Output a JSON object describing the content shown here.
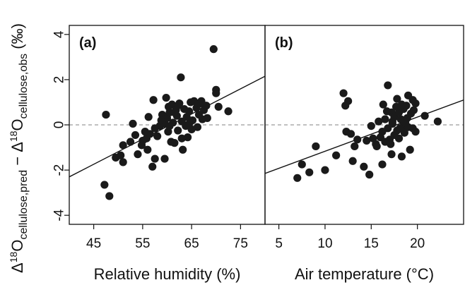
{
  "chart_data": {
    "ylabel": {
      "delta": "Δ",
      "sup": "18",
      "o": "O",
      "sub_pred": "cellulose,pred",
      "minus": " − ",
      "sub_obs": "cellulose,obs",
      "unit": " (‰)"
    },
    "ylim": [
      -4.4,
      4.4
    ],
    "yticks": [
      -4,
      -2,
      0,
      2,
      4
    ],
    "point_color": "#1a1a1a",
    "reference_line": {
      "y": 0,
      "style": "dashed",
      "color": "#9a9a9a"
    },
    "panels": [
      {
        "type": "scatter",
        "label": "(a)",
        "xlabel": "Relative humidity (%)",
        "xlim": [
          40,
          80
        ],
        "xticks": [
          45,
          55,
          65,
          75
        ],
        "regression": {
          "x": [
            40,
            80
          ],
          "y": [
            -2.3,
            2.15
          ]
        },
        "points": [
          [
            47.5,
            0.45
          ],
          [
            47.2,
            -2.65
          ],
          [
            48.2,
            -3.15
          ],
          [
            49.5,
            -1.45
          ],
          [
            50.5,
            -1.35
          ],
          [
            51,
            -0.9
          ],
          [
            51,
            -1.65
          ],
          [
            52.5,
            -0.75
          ],
          [
            53,
            0.05
          ],
          [
            53.5,
            -0.45
          ],
          [
            54,
            -1.3
          ],
          [
            55,
            -0.7
          ],
          [
            55.5,
            -0.3
          ],
          [
            55.8,
            -0.6
          ],
          [
            56,
            -1.1
          ],
          [
            56.5,
            -0.4
          ],
          [
            57,
            -1.85
          ],
          [
            57.2,
            1.1
          ],
          [
            57.5,
            -1.5
          ],
          [
            57.5,
            -0.15
          ],
          [
            58,
            -0.5
          ],
          [
            58.5,
            -0.05
          ],
          [
            59,
            0.45
          ],
          [
            59.5,
            0.05
          ],
          [
            59.5,
            -1.5
          ],
          [
            59.8,
            1.2
          ],
          [
            60,
            0.3
          ],
          [
            60.2,
            -0.3
          ],
          [
            60.5,
            0.55
          ],
          [
            60.8,
            -0.75
          ],
          [
            61,
            0.9
          ],
          [
            61.2,
            0.1
          ],
          [
            61.5,
            -0.8
          ],
          [
            61.8,
            0.65
          ],
          [
            62,
            0.4
          ],
          [
            62.2,
            -0.25
          ],
          [
            62.5,
            0.95
          ],
          [
            62.8,
            2.1
          ],
          [
            63,
            0.15
          ],
          [
            63.2,
            -1.1
          ],
          [
            63.5,
            0.7
          ],
          [
            63.8,
            -0.05
          ],
          [
            64,
            0.35
          ],
          [
            64.2,
            -0.55
          ],
          [
            64.5,
            0.6
          ],
          [
            64.8,
            1.0
          ],
          [
            65,
            -0.2
          ],
          [
            65.2,
            0.2
          ],
          [
            65.5,
            1.05
          ],
          [
            66,
            0.75
          ],
          [
            66.2,
            -0.1
          ],
          [
            66.5,
            0.45
          ],
          [
            67,
            1.05
          ],
          [
            67.2,
            0.25
          ],
          [
            67.5,
            0.65
          ],
          [
            68,
            0.85
          ],
          [
            68.2,
            0.3
          ],
          [
            69.5,
            3.35
          ],
          [
            70,
            1.55
          ],
          [
            70,
            1.4
          ],
          [
            70.5,
            0.8
          ],
          [
            72.5,
            0.6
          ],
          [
            61.5,
            0.55
          ],
          [
            63,
            -0.6
          ],
          [
            64.5,
            0.05
          ],
          [
            58.8,
            0.2
          ],
          [
            60.5,
            -0.05
          ],
          [
            56.2,
            0.35
          ],
          [
            62.2,
            0.85
          ],
          [
            60.3,
            0.8
          ],
          [
            54.8,
            -0.9
          ],
          [
            66.8,
            0.95
          ]
        ]
      },
      {
        "type": "scatter",
        "label": "(b)",
        "xlabel": "Air temperature (°C)",
        "xlim": [
          3.5,
          25
        ],
        "xticks": [
          5,
          10,
          15,
          20
        ],
        "regression": {
          "x": [
            3.5,
            25
          ],
          "y": [
            -2.15,
            1.1
          ]
        },
        "points": [
          [
            7,
            -2.35
          ],
          [
            7.5,
            -1.75
          ],
          [
            8.3,
            -2.1
          ],
          [
            9,
            -0.95
          ],
          [
            10,
            -2.0
          ],
          [
            11.2,
            -1.35
          ],
          [
            12,
            1.4
          ],
          [
            12.2,
            0.85
          ],
          [
            12.3,
            -0.3
          ],
          [
            12.5,
            1.05
          ],
          [
            12.8,
            -0.4
          ],
          [
            13,
            -1.6
          ],
          [
            13.2,
            -0.95
          ],
          [
            13.5,
            -0.65
          ],
          [
            14.2,
            -1.85
          ],
          [
            14.5,
            -0.7
          ],
          [
            14.8,
            -2.2
          ],
          [
            15,
            -0.05
          ],
          [
            15.2,
            -0.6
          ],
          [
            15.5,
            -0.85
          ],
          [
            15.6,
            -0.95
          ],
          [
            15.8,
            0.15
          ],
          [
            16,
            -0.55
          ],
          [
            16.2,
            -1.75
          ],
          [
            16.3,
            0.9
          ],
          [
            16.5,
            -0.75
          ],
          [
            16.5,
            0.25
          ],
          [
            16.8,
            1.75
          ],
          [
            16.8,
            -0.15
          ],
          [
            17,
            -0.65
          ],
          [
            17.2,
            0.55
          ],
          [
            17.2,
            -1.3
          ],
          [
            17.3,
            0.05
          ],
          [
            17.5,
            -0.45
          ],
          [
            17.5,
            0.35
          ],
          [
            17.7,
            0.8
          ],
          [
            17.8,
            1.15
          ],
          [
            17.8,
            -0.25
          ],
          [
            18,
            -0.6
          ],
          [
            18,
            0.55
          ],
          [
            18.2,
            0.25
          ],
          [
            18.3,
            -1.4
          ],
          [
            18.3,
            0.9
          ],
          [
            18.5,
            -0.05
          ],
          [
            18.5,
            0.7
          ],
          [
            18.6,
            -0.35
          ],
          [
            18.8,
            0.85
          ],
          [
            18.9,
            0.3
          ],
          [
            19,
            1.3
          ],
          [
            19,
            -0.1
          ],
          [
            19.2,
            -1.1
          ],
          [
            19.3,
            0.5
          ],
          [
            19.5,
            1.1
          ],
          [
            19.5,
            -0.15
          ],
          [
            19.6,
            0.65
          ],
          [
            19.8,
            -0.3
          ],
          [
            19.8,
            0.95
          ],
          [
            20.8,
            0.4
          ],
          [
            22.2,
            0.15
          ],
          [
            16.2,
            -0.3
          ],
          [
            17.3,
            0.15
          ],
          [
            18.1,
            -0.15
          ],
          [
            17.1,
            -0.85
          ],
          [
            18.7,
            0.1
          ],
          [
            16.7,
            0.6
          ]
        ]
      }
    ]
  }
}
